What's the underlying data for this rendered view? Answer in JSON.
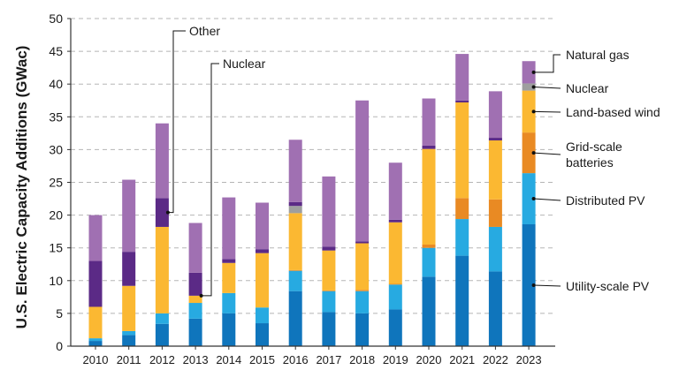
{
  "chart_data": {
    "type": "bar",
    "stacked": true,
    "title": "",
    "xlabel": "",
    "ylabel": "U.S. Electric Capacity Additions (GWac)",
    "ylim": [
      0,
      50
    ],
    "yticks": [
      0,
      5,
      10,
      15,
      20,
      25,
      30,
      35,
      40,
      45,
      50
    ],
    "grid": "horizontal dashed",
    "categories": [
      "2010",
      "2011",
      "2012",
      "2013",
      "2014",
      "2015",
      "2016",
      "2017",
      "2018",
      "2019",
      "2020",
      "2021",
      "2022",
      "2023"
    ],
    "series": [
      {
        "name": "Utility-scale PV",
        "color": "#0f75bc",
        "values": [
          0.8,
          1.7,
          3.4,
          4.2,
          5.0,
          3.5,
          8.4,
          5.2,
          5.0,
          5.6,
          10.6,
          13.8,
          11.4,
          18.6
        ]
      },
      {
        "name": "Distributed PV",
        "color": "#27aae1",
        "values": [
          0.4,
          0.6,
          1.6,
          2.4,
          3.1,
          2.4,
          3.1,
          3.2,
          3.4,
          3.8,
          4.4,
          5.6,
          6.8,
          7.8
        ]
      },
      {
        "name": "Grid-scale batteries",
        "color": "#e98a23",
        "values": [
          0,
          0,
          0,
          0,
          0,
          0,
          0.1,
          0.1,
          0.2,
          0.1,
          0.5,
          3.2,
          4.2,
          6.2
        ]
      },
      {
        "name": "Land-based wind",
        "color": "#fbb832",
        "values": [
          4.8,
          6.9,
          13.2,
          1.1,
          4.6,
          8.3,
          8.7,
          6.1,
          7.1,
          9.4,
          14.6,
          14.6,
          9.0,
          6.4
        ]
      },
      {
        "name": "Nuclear",
        "color": "#9e9e9e",
        "values": [
          0,
          0,
          0,
          0,
          0,
          0,
          1.1,
          0,
          0,
          0,
          0,
          0,
          0,
          1.1
        ]
      },
      {
        "name": "Other",
        "color": "#5b2a86",
        "values": [
          7.0,
          5.2,
          4.4,
          3.5,
          0.6,
          0.6,
          0.6,
          0.6,
          0.3,
          0.4,
          0.5,
          0.3,
          0.4,
          0
        ]
      },
      {
        "name": "Natural gas",
        "color": "#a070b2",
        "values": [
          7.0,
          11.0,
          11.4,
          7.6,
          9.4,
          7.1,
          9.5,
          10.7,
          21.5,
          8.7,
          7.2,
          7.1,
          7.1,
          3.4
        ]
      }
    ],
    "callouts": [
      {
        "label": "Other",
        "year": "2012"
      },
      {
        "label": "Nuclear",
        "year": "2013"
      }
    ],
    "legend_labels": [
      {
        "text": [
          "Natural gas"
        ],
        "series": "Natural gas"
      },
      {
        "text": [
          "Nuclear"
        ],
        "series": "Nuclear"
      },
      {
        "text": [
          "Land-based wind"
        ],
        "series": "Land-based wind"
      },
      {
        "text": [
          "Grid-scale",
          "batteries"
        ],
        "series": "Grid-scale batteries"
      },
      {
        "text": [
          "Distributed PV"
        ],
        "series": "Distributed PV"
      },
      {
        "text": [
          "Utility-scale PV"
        ],
        "series": "Utility-scale PV"
      }
    ],
    "legend_placement": "right, leader lines to 2023 bar"
  }
}
